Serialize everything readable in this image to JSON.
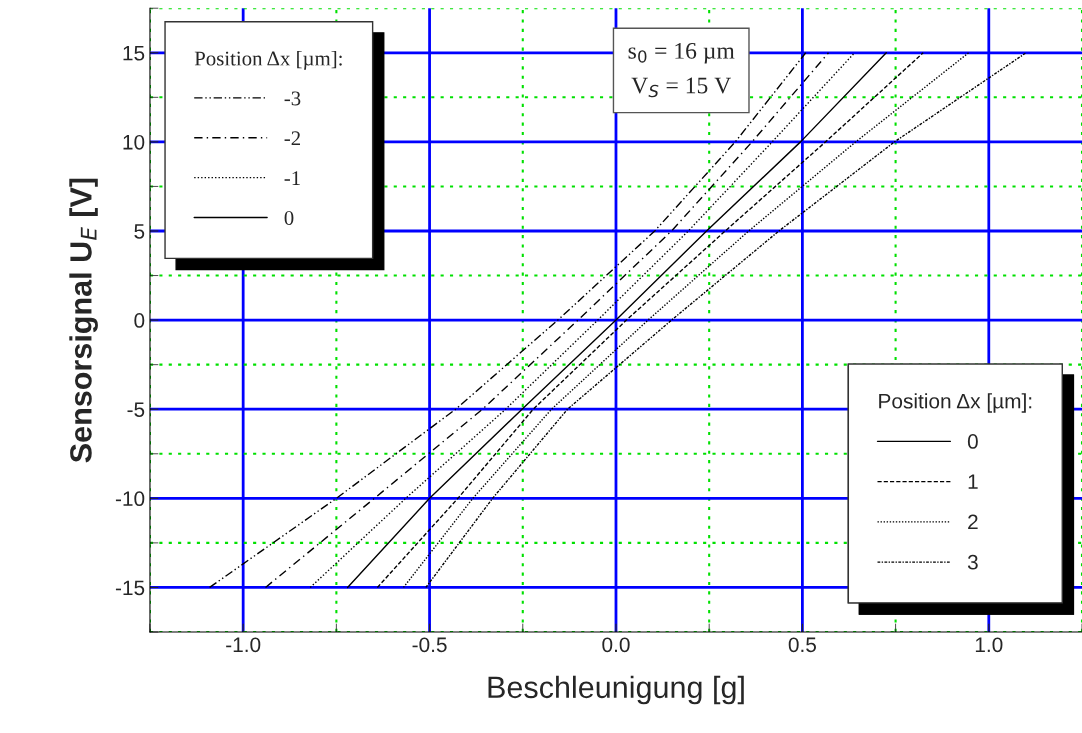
{
  "chart_data": {
    "type": "line",
    "xlabel": "Beschleunigung [g]",
    "ylabel": "Sensorsignal U$_{E}$ [V]",
    "legend_title": "Position Δx [µm]:",
    "legend": [
      "top left",
      "bottom right"
    ],
    "xlim": [
      -1.25,
      1.25
    ],
    "ylim": [
      -17.5,
      17.5
    ],
    "xticks": [
      {
        "value": -1.25,
        "label": null
      },
      {
        "value": -1.0,
        "label": "-1.0"
      },
      {
        "value": -0.75,
        "label": null
      },
      {
        "value": -0.5,
        "label": "-0.5"
      },
      {
        "value": -0.25,
        "label": null
      },
      {
        "value": 0.0,
        "label": "0.0"
      },
      {
        "value": 0.25,
        "label": null
      },
      {
        "value": 0.5,
        "label": "0.5"
      },
      {
        "value": 0.75,
        "label": null
      },
      {
        "value": 1.0,
        "label": "1.0"
      },
      {
        "value": 1.25,
        "label": null
      }
    ],
    "yticks": [
      {
        "value": -17.5,
        "label": null
      },
      -15,
      {
        "value": -12.5,
        "label": null
      },
      -10,
      {
        "value": -7.5,
        "label": null
      },
      -5,
      {
        "value": -2.5,
        "label": null
      },
      0,
      {
        "value": 2.5,
        "label": null
      },
      5,
      {
        "value": 7.5,
        "label": null
      },
      10,
      {
        "value": 12.5,
        "label": null
      },
      15,
      {
        "value": 17.5,
        "label": null
      }
    ],
    "grid": true,
    "annotations": [
      "s$_{0}$ = 16 µm",
      "V$_{S}$ = 15 V"
    ],
    "series": [
      {
        "name": "-3",
        "color": "#000000",
        "line_style": "dashdotdot",
        "x": [
          -1.09,
          -0.75,
          -0.43,
          -0.156,
          0.104,
          0.32,
          0.509
        ],
        "values": [
          -15,
          -10,
          -5,
          0,
          5,
          10,
          15
        ]
      },
      {
        "name": "-2",
        "color": "#000000",
        "line_style": "dashdot",
        "x": [
          -0.94,
          -0.648,
          -0.358,
          -0.102,
          0.149,
          0.365,
          0.57
        ],
        "values": [
          -15,
          -10,
          -5,
          0,
          5,
          10,
          15
        ]
      },
      {
        "name": "-1",
        "color": "#000000",
        "line_style": "densedot",
        "x": [
          -0.82,
          -0.564,
          -0.296,
          -0.049,
          0.194,
          0.419,
          0.64
        ],
        "values": [
          -15,
          -10,
          -5,
          0,
          5,
          10,
          15
        ]
      },
      {
        "name": "0",
        "color": "#000000",
        "line_style": "solid",
        "x": [
          -0.72,
          -0.5,
          -0.252,
          0.0,
          0.243,
          0.495,
          0.725
        ],
        "values": [
          -15,
          -10,
          -5,
          0,
          5,
          10,
          15
        ]
      },
      {
        "name": "1",
        "color": "#000000",
        "line_style": "dashed",
        "x": [
          -0.64,
          -0.424,
          -0.222,
          0.028,
          0.293,
          0.562,
          0.824
        ],
        "values": [
          -15,
          -10,
          -5,
          0,
          5,
          10,
          15
        ]
      },
      {
        "name": "2",
        "color": "#000000",
        "line_style": "dotted",
        "x": [
          -0.57,
          -0.384,
          -0.173,
          0.086,
          0.356,
          0.643,
          0.946
        ],
        "values": [
          -15,
          -10,
          -5,
          0,
          5,
          10,
          15
        ]
      },
      {
        "name": "3",
        "color": "#000000",
        "line_style": "dashdotdense",
        "x": [
          -0.51,
          -0.331,
          -0.13,
          0.149,
          0.437,
          0.747,
          1.1
        ],
        "values": [
          -15,
          -10,
          -5,
          0,
          5,
          10,
          15
        ]
      }
    ]
  }
}
